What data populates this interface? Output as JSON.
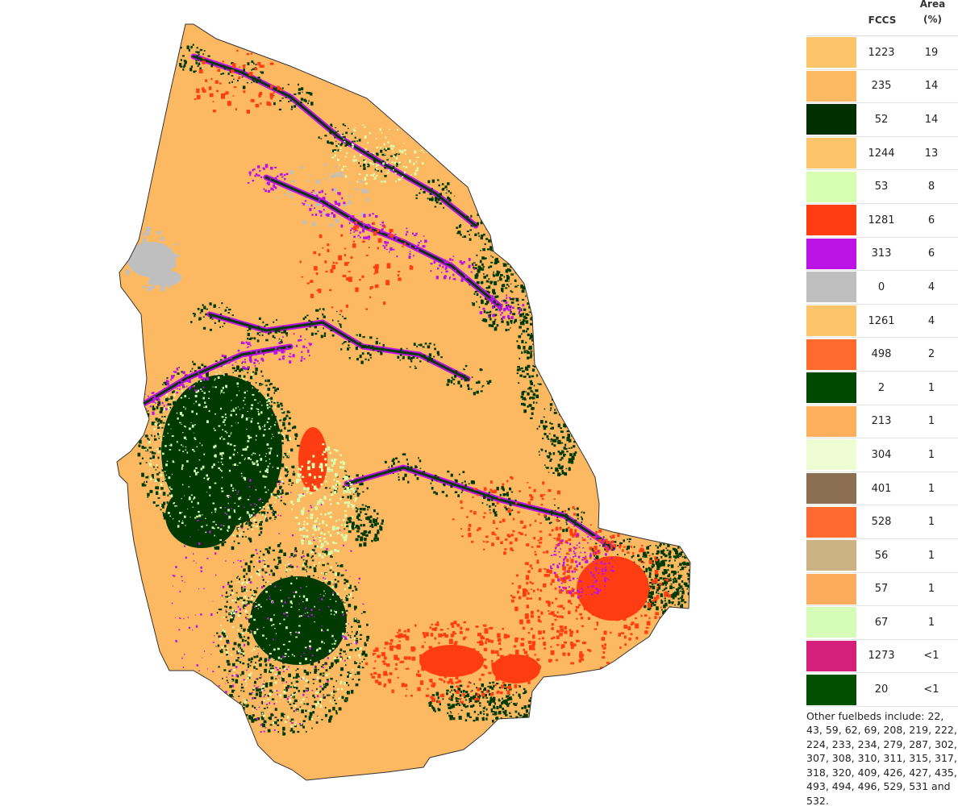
{
  "legend": {
    "header": {
      "fccs": "FCCS",
      "area_line1": "Area",
      "area_line2": "(%)"
    },
    "rows": [
      {
        "fccs": "1223",
        "area": "19",
        "color": "#fcc46b"
      },
      {
        "fccs": "235",
        "area": "14",
        "color": "#fdb961"
      },
      {
        "fccs": "52",
        "area": "14",
        "color": "#003000"
      },
      {
        "fccs": "1244",
        "area": "13",
        "color": "#fcc46b"
      },
      {
        "fccs": "53",
        "area": "8",
        "color": "#d6ffb0"
      },
      {
        "fccs": "1281",
        "area": "6",
        "color": "#ff3c12"
      },
      {
        "fccs": "313",
        "area": "6",
        "color": "#bb12e6"
      },
      {
        "fccs": "0",
        "area": "4",
        "color": "#bfbfbf"
      },
      {
        "fccs": "1261",
        "area": "4",
        "color": "#fcc46b"
      },
      {
        "fccs": "498",
        "area": "2",
        "color": "#ff6a2e"
      },
      {
        "fccs": "2",
        "area": "1",
        "color": "#004a00"
      },
      {
        "fccs": "213",
        "area": "1",
        "color": "#fdaf5b"
      },
      {
        "fccs": "304",
        "area": "1",
        "color": "#edfcd3"
      },
      {
        "fccs": "401",
        "area": "1",
        "color": "#8c6e50"
      },
      {
        "fccs": "528",
        "area": "1",
        "color": "#ff6a30"
      },
      {
        "fccs": "56",
        "area": "1",
        "color": "#cbb386"
      },
      {
        "fccs": "57",
        "area": "1",
        "color": "#fdac5d"
      },
      {
        "fccs": "67",
        "area": "1",
        "color": "#d6fcb9"
      },
      {
        "fccs": "1273",
        "area": "<1",
        "color": "#d4207a"
      },
      {
        "fccs": "20",
        "area": "<1",
        "color": "#005000"
      }
    ],
    "note": "Other fuelbeds include: 22, 43, 59, 62, 69, 208, 219, 222, 224, 233, 234, 279, 287, 302, 307, 308, 310, 311, 315, 317, 318, 320, 409, 426, 427, 435, 493, 494, 496, 529, 531 and 532."
  },
  "map": {
    "colors": {
      "base": "#fdb961",
      "forest": "#003a00",
      "grass": "#d6ffb0",
      "red": "#ff3c12",
      "purple": "#bb12e6",
      "gray": "#bfbfbf",
      "outline": "#333333"
    }
  }
}
